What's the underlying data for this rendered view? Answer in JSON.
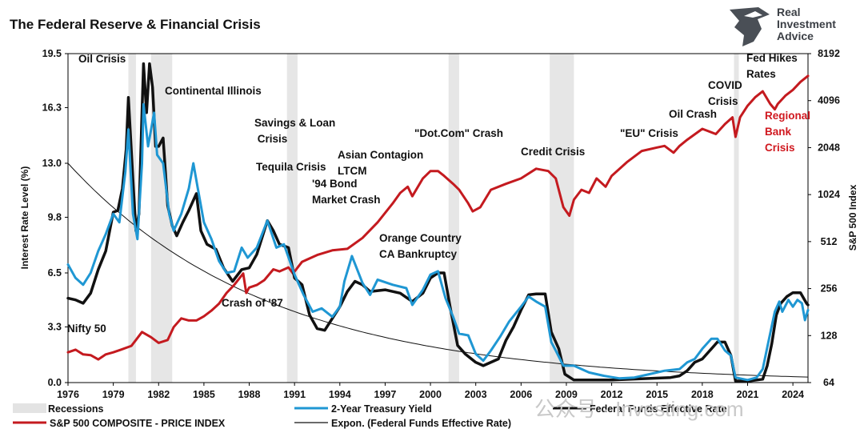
{
  "chart_data": {
    "type": "line",
    "title": "The Federal Reserve & Financial Crisis",
    "brand": {
      "line1": "Real",
      "line2": "Investment",
      "line3": "Advice"
    },
    "ylabel": "Interest Rate Level (%)",
    "y2label": "S&P 500 Index",
    "xlim": [
      1976,
      2025
    ],
    "ylim": [
      0,
      19.5
    ],
    "y2lim_log2": [
      64,
      8192
    ],
    "x_ticks": [
      "1976",
      "1979",
      "1982",
      "1985",
      "1988",
      "1991",
      "1994",
      "1997",
      "2000",
      "2003",
      "2006",
      "2009",
      "2012",
      "2015",
      "2018",
      "2021",
      "2024"
    ],
    "y_ticks": [
      "0.0",
      "3.3",
      "6.5",
      "9.8",
      "13.0",
      "16.3",
      "19.5"
    ],
    "y2_ticks": [
      "64",
      "128",
      "256",
      "512",
      "1024",
      "2048",
      "4096",
      "8192"
    ],
    "recessions": [
      [
        1980.0,
        1980.5
      ],
      [
        1981.5,
        1982.9
      ],
      [
        1990.5,
        1991.2
      ],
      [
        2001.2,
        2001.9
      ],
      [
        2007.9,
        2009.5
      ],
      [
        2020.1,
        2020.4
      ]
    ],
    "series": [
      {
        "name": "Federal Funds Effective Rate",
        "color": "#111111",
        "x": [
          1976,
          1976.5,
          1977,
          1977.5,
          1978,
          1978.5,
          1979,
          1979.3,
          1979.6,
          1979.85,
          1980.0,
          1980.3,
          1980.5,
          1980.7,
          1980.9,
          1981.0,
          1981.2,
          1981.4,
          1981.6,
          1981.8,
          1982.0,
          1982.3,
          1982.6,
          1982.9,
          1983.2,
          1983.6,
          1984.0,
          1984.5,
          1984.8,
          1985.2,
          1985.8,
          1986.3,
          1986.9,
          1987.5,
          1988.0,
          1988.5,
          1989.2,
          1989.6,
          1990.0,
          1990.6,
          1991.0,
          1991.5,
          1992.0,
          1992.5,
          1993.0,
          1994.0,
          1994.5,
          1995.0,
          1995.5,
          1996.0,
          1997.0,
          1998.0,
          1998.8,
          1999.5,
          2000.0,
          2000.5,
          2000.9,
          2001.3,
          2001.8,
          2002.3,
          2003.0,
          2003.5,
          2004.5,
          2005.0,
          2005.5,
          2006.0,
          2006.5,
          2007.0,
          2007.6,
          2008.0,
          2008.5,
          2008.9,
          2009.5,
          2012.0,
          2015.9,
          2016.5,
          2017.0,
          2017.5,
          2018.0,
          2018.5,
          2019.0,
          2019.5,
          2019.9,
          2020.2,
          2021.0,
          2022.0,
          2022.3,
          2022.6,
          2022.9,
          2023.2,
          2023.6,
          2024.0,
          2024.5,
          2024.9,
          2025.0
        ],
        "y": [
          5.0,
          4.9,
          4.7,
          5.3,
          6.7,
          7.8,
          10.1,
          10.2,
          11.5,
          13.8,
          16.9,
          12.0,
          9.0,
          10.0,
          16.0,
          18.9,
          16.0,
          18.9,
          17.5,
          14.0,
          14.0,
          14.5,
          10.5,
          9.3,
          8.7,
          9.5,
          10.2,
          11.2,
          9.0,
          8.2,
          7.9,
          6.8,
          6.0,
          6.7,
          6.8,
          7.6,
          9.6,
          9.0,
          8.2,
          8.0,
          6.2,
          5.8,
          4.0,
          3.2,
          3.1,
          4.5,
          5.4,
          6.0,
          5.8,
          5.4,
          5.5,
          5.3,
          4.8,
          5.3,
          6.2,
          6.5,
          6.5,
          4.5,
          2.2,
          1.7,
          1.2,
          1.0,
          1.4,
          2.5,
          3.3,
          4.3,
          5.2,
          5.25,
          5.25,
          3.0,
          2.0,
          0.5,
          0.15,
          0.15,
          0.3,
          0.4,
          0.7,
          1.2,
          1.4,
          1.9,
          2.4,
          2.4,
          1.6,
          0.1,
          0.08,
          0.2,
          1.0,
          2.3,
          4.0,
          4.7,
          5.1,
          5.33,
          5.33,
          4.7,
          4.6
        ]
      },
      {
        "name": "2-Year Treasury Yield",
        "color": "#1f97d3",
        "x": [
          1976,
          1976.5,
          1977,
          1977.5,
          1978,
          1978.5,
          1979,
          1979.4,
          1979.8,
          1980.0,
          1980.3,
          1980.6,
          1980.9,
          1981.0,
          1981.3,
          1981.7,
          1981.9,
          1982.3,
          1982.7,
          1983.0,
          1983.5,
          1984.0,
          1984.3,
          1984.6,
          1985.0,
          1985.5,
          1986.0,
          1986.5,
          1987.0,
          1987.5,
          1987.9,
          1988.5,
          1989.2,
          1989.8,
          1990.3,
          1991.0,
          1991.6,
          1992.2,
          1992.8,
          1993.5,
          1994.0,
          1994.3,
          1994.8,
          1995.5,
          1996.0,
          1996.5,
          1997.5,
          1998.4,
          1998.8,
          1999.5,
          2000.0,
          2000.5,
          2001.0,
          2001.5,
          2001.9,
          2002.5,
          2003.0,
          2003.5,
          2004.0,
          2004.6,
          2005.2,
          2006.0,
          2006.5,
          2007.0,
          2007.6,
          2008.0,
          2008.3,
          2008.8,
          2009.5,
          2010.5,
          2011.5,
          2012.5,
          2013.5,
          2014.5,
          2015.5,
          2016.5,
          2017.0,
          2017.5,
          2018.0,
          2018.6,
          2019.0,
          2019.5,
          2019.9,
          2020.2,
          2021.0,
          2021.6,
          2022.0,
          2022.4,
          2022.8,
          2023.1,
          2023.3,
          2023.7,
          2024.0,
          2024.3,
          2024.6,
          2024.8,
          2025.0
        ],
        "y": [
          7.0,
          6.2,
          5.8,
          6.5,
          7.8,
          8.8,
          10.0,
          9.5,
          12.5,
          15.0,
          10.0,
          8.5,
          13.0,
          16.5,
          14.0,
          16.0,
          13.5,
          13.0,
          10.0,
          9.0,
          10.0,
          11.5,
          13.0,
          11.5,
          9.5,
          8.5,
          7.2,
          6.5,
          6.6,
          8.0,
          7.4,
          8.0,
          9.6,
          8.0,
          8.2,
          6.4,
          5.2,
          4.2,
          4.4,
          3.9,
          4.5,
          6.0,
          7.5,
          5.9,
          5.2,
          6.1,
          5.8,
          5.6,
          4.6,
          5.5,
          6.4,
          6.6,
          5.0,
          3.9,
          2.9,
          2.8,
          1.7,
          1.3,
          1.9,
          2.7,
          3.6,
          4.5,
          5.1,
          4.8,
          4.5,
          2.4,
          1.9,
          1.0,
          1.0,
          0.6,
          0.4,
          0.25,
          0.3,
          0.5,
          0.7,
          0.8,
          1.2,
          1.4,
          2.0,
          2.6,
          2.6,
          1.9,
          1.6,
          0.3,
          0.15,
          0.3,
          0.8,
          2.5,
          4.2,
          4.8,
          4.2,
          4.9,
          4.5,
          4.9,
          4.7,
          3.7,
          4.3
        ]
      },
      {
        "name": "S&P 500 COMPOSITE - PRICE INDEX",
        "color": "#c41a1f",
        "x": [
          1976,
          1976.5,
          1977,
          1977.5,
          1978,
          1978.5,
          1979,
          1979.5,
          1980.2,
          1980.5,
          1980.9,
          1981.5,
          1982.0,
          1982.6,
          1983.0,
          1983.5,
          1984.0,
          1984.5,
          1985.0,
          1985.5,
          1986.0,
          1986.5,
          1987.0,
          1987.6,
          1987.8,
          1988.0,
          1988.5,
          1989.0,
          1989.6,
          1990.0,
          1990.6,
          1990.9,
          1991.5,
          1992.5,
          1993.5,
          1994.5,
          1995.5,
          1996.5,
          1997.5,
          1998.0,
          1998.5,
          1998.8,
          1999.5,
          2000.0,
          2000.5,
          2000.9,
          2001.5,
          2001.9,
          2002.5,
          2002.8,
          2003.3,
          2004.0,
          2005.0,
          2006.0,
          2007.0,
          2007.8,
          2008.3,
          2008.8,
          2009.2,
          2009.5,
          2010.0,
          2010.5,
          2011.0,
          2011.6,
          2012.0,
          2013.0,
          2014.0,
          2015.0,
          2015.5,
          2016.1,
          2016.5,
          2017.0,
          2018.0,
          2018.9,
          2019.5,
          2020.0,
          2020.2,
          2020.5,
          2021.0,
          2021.5,
          2022.0,
          2022.5,
          2022.8,
          2023.0,
          2023.5,
          2024.0,
          2024.5,
          2025.0
        ],
        "y2": [
          100,
          104,
          97,
          96,
          90,
          97,
          100,
          104,
          110,
          120,
          135,
          125,
          115,
          120,
          145,
          165,
          160,
          160,
          170,
          185,
          205,
          240,
          270,
          320,
          240,
          260,
          270,
          290,
          340,
          330,
          350,
          320,
          380,
          420,
          450,
          460,
          540,
          680,
          900,
          1050,
          1150,
          1000,
          1300,
          1450,
          1450,
          1350,
          1200,
          1100,
          900,
          800,
          850,
          1100,
          1200,
          1300,
          1500,
          1450,
          1300,
          850,
          750,
          950,
          1100,
          1050,
          1300,
          1150,
          1350,
          1650,
          1950,
          2050,
          2100,
          1900,
          2100,
          2300,
          2700,
          2500,
          2900,
          3200,
          2400,
          3200,
          3800,
          4300,
          4700,
          3900,
          3600,
          3900,
          4400,
          4800,
          5400,
          5900
        ]
      },
      {
        "name": "Expon. (Federal Funds Effective Rate)",
        "color": "#111111",
        "fit_formula_y": "13.0 * exp(-0.0752 * (x - 1976))"
      }
    ],
    "legend": [
      {
        "label": "Recessions",
        "kind": "patch",
        "color": "#e3e3e3"
      },
      {
        "label": "2-Year Treasury Yield",
        "kind": "line",
        "color": "#1f97d3"
      },
      {
        "label": "Federal Funds Effective Rate",
        "kind": "line",
        "color": "#111111"
      },
      {
        "label": "S&P 500 COMPOSITE - PRICE INDEX",
        "kind": "line",
        "color": "#c41a1f"
      },
      {
        "label": "Expon. (Federal Funds Effective Rate)",
        "kind": "thinline",
        "color": "#111111"
      }
    ],
    "annotations": [
      {
        "lines": [
          "Oil Crisis"
        ],
        "color": "black"
      },
      {
        "lines": [
          "Continental Illinois"
        ],
        "color": "black"
      },
      {
        "lines": [
          "Savings & Loan",
          " Crisis"
        ],
        "color": "black"
      },
      {
        "lines": [
          "Tequila Crisis"
        ],
        "color": "black"
      },
      {
        "lines": [
          "Asian Contagion",
          "LTCM"
        ],
        "color": "black"
      },
      {
        "lines": [
          "'94 Bond",
          "Market Crash"
        ],
        "color": "black"
      },
      {
        "lines": [
          "\"Dot.Com\" Crash"
        ],
        "color": "black"
      },
      {
        "lines": [
          "Credit Crisis"
        ],
        "color": "black"
      },
      {
        "lines": [
          "\"EU\" Crisis"
        ],
        "color": "black"
      },
      {
        "lines": [
          "Oil Crash"
        ],
        "color": "black"
      },
      {
        "lines": [
          "COVID",
          "Crisis"
        ],
        "color": "black"
      },
      {
        "lines": [
          "Fed Hikes",
          "Rates"
        ],
        "color": "black"
      },
      {
        "lines": [
          "Regional",
          "Bank",
          "Crisis"
        ],
        "color": "red"
      },
      {
        "lines": [
          "Orange Country",
          "CA Bankruptcy"
        ],
        "color": "black"
      },
      {
        "lines": [
          "Crash of '87"
        ],
        "color": "black"
      },
      {
        "lines": [
          "Nifty 50"
        ],
        "color": "black"
      }
    ]
  },
  "watermark": "公众号 · Investing.com"
}
